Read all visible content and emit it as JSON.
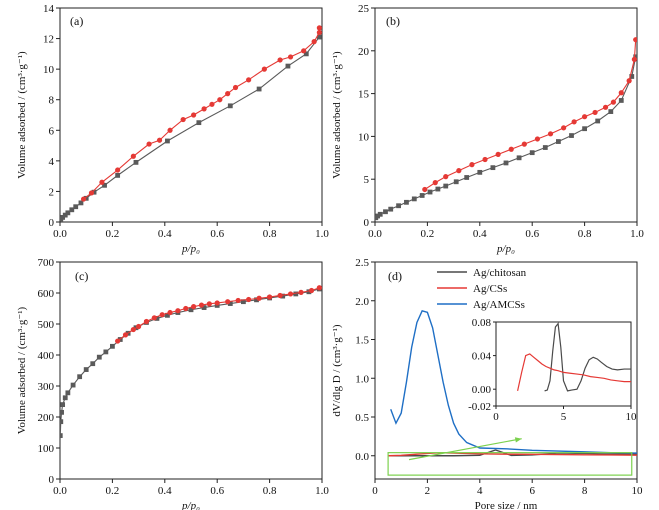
{
  "chart_data": [
    {
      "panel": "(a)",
      "type": "line",
      "xlabel": "p/p₀",
      "ylabel": "Volume adsorbed / (cm³·g⁻¹)",
      "xlim": [
        0,
        1.0
      ],
      "ylim": [
        0,
        14
      ],
      "xticks": [
        "0.0",
        "0.2",
        "0.4",
        "0.6",
        "0.8",
        "1.0"
      ],
      "yticks": [
        "0",
        "2",
        "4",
        "6",
        "8",
        "10",
        "12",
        "14"
      ],
      "series": [
        {
          "color": "#5a5a5a",
          "marker": "square",
          "x": [
            0.003,
            0.01,
            0.02,
            0.03,
            0.045,
            0.06,
            0.08,
            0.1,
            0.13,
            0.17,
            0.22,
            0.29,
            0.41,
            0.53,
            0.65,
            0.76,
            0.87,
            0.94,
            0.99
          ],
          "y": [
            0.2,
            0.3,
            0.45,
            0.6,
            0.8,
            1.0,
            1.25,
            1.55,
            1.95,
            2.4,
            3.05,
            3.9,
            5.3,
            6.5,
            7.6,
            8.7,
            10.2,
            11.0,
            12.1
          ]
        },
        {
          "color": "#e53935",
          "marker": "circle",
          "x": [
            0.09,
            0.12,
            0.16,
            0.22,
            0.28,
            0.34,
            0.38,
            0.42,
            0.47,
            0.51,
            0.55,
            0.58,
            0.61,
            0.64,
            0.67,
            0.72,
            0.78,
            0.84,
            0.88,
            0.93,
            0.97,
            0.99,
            0.99
          ],
          "y": [
            1.5,
            1.9,
            2.6,
            3.4,
            4.3,
            5.1,
            5.35,
            6.0,
            6.7,
            7.0,
            7.4,
            7.7,
            8.0,
            8.4,
            8.8,
            9.3,
            10.0,
            10.6,
            10.8,
            11.2,
            11.8,
            12.4,
            12.7
          ]
        }
      ]
    },
    {
      "panel": "(b)",
      "type": "line",
      "xlabel": "p/p₀",
      "ylabel": "Volume adsorbed / (cm³·g⁻¹)",
      "xlim": [
        0,
        1.0
      ],
      "ylim": [
        0,
        25
      ],
      "xticks": [
        "0.0",
        "0.2",
        "0.4",
        "0.6",
        "0.8",
        "1.0"
      ],
      "yticks": [
        "0",
        "5",
        "10",
        "15",
        "20",
        "25"
      ],
      "series": [
        {
          "color": "#5a5a5a",
          "marker": "square",
          "x": [
            0.003,
            0.01,
            0.02,
            0.04,
            0.06,
            0.09,
            0.12,
            0.15,
            0.18,
            0.21,
            0.24,
            0.27,
            0.31,
            0.35,
            0.4,
            0.45,
            0.5,
            0.55,
            0.6,
            0.65,
            0.7,
            0.75,
            0.8,
            0.85,
            0.9,
            0.94,
            0.98,
            0.995
          ],
          "y": [
            0.5,
            0.7,
            0.9,
            1.2,
            1.5,
            1.9,
            2.3,
            2.7,
            3.1,
            3.5,
            3.85,
            4.2,
            4.7,
            5.2,
            5.8,
            6.35,
            6.9,
            7.5,
            8.1,
            8.7,
            9.4,
            10.1,
            10.9,
            11.8,
            12.9,
            14.2,
            17.0,
            19.3
          ]
        },
        {
          "color": "#e53935",
          "marker": "circle",
          "x": [
            0.19,
            0.23,
            0.27,
            0.32,
            0.37,
            0.42,
            0.47,
            0.52,
            0.57,
            0.62,
            0.67,
            0.72,
            0.76,
            0.8,
            0.84,
            0.88,
            0.91,
            0.94,
            0.97,
            0.99,
            0.995
          ],
          "y": [
            3.8,
            4.6,
            5.3,
            6.0,
            6.7,
            7.3,
            7.9,
            8.5,
            9.1,
            9.7,
            10.3,
            11.0,
            11.7,
            12.3,
            12.8,
            13.4,
            14.0,
            15.1,
            16.5,
            19.0,
            21.3
          ]
        }
      ]
    },
    {
      "panel": "(c)",
      "type": "line",
      "xlabel": "p/p₀",
      "ylabel": "Volume adsorbed / (cm³·g⁻¹)",
      "xlim": [
        0,
        1.0
      ],
      "ylim": [
        0,
        700
      ],
      "xticks": [
        "0.0",
        "0.2",
        "0.4",
        "0.6",
        "0.8",
        "1.0"
      ],
      "yticks": [
        "0",
        "100",
        "200",
        "300",
        "400",
        "500",
        "600",
        "700"
      ],
      "series": [
        {
          "color": "#5a5a5a",
          "marker": "square",
          "x": [
            0.001,
            0.003,
            0.006,
            0.01,
            0.02,
            0.03,
            0.05,
            0.075,
            0.1,
            0.125,
            0.15,
            0.175,
            0.2,
            0.23,
            0.26,
            0.29,
            0.33,
            0.37,
            0.41,
            0.45,
            0.5,
            0.55,
            0.6,
            0.65,
            0.7,
            0.75,
            0.8,
            0.85,
            0.9,
            0.95,
            0.99
          ],
          "y": [
            140,
            185,
            215,
            240,
            262,
            278,
            303,
            330,
            353,
            372,
            393,
            410,
            428,
            450,
            470,
            488,
            505,
            518,
            528,
            537,
            546,
            553,
            560,
            566,
            572,
            578,
            584,
            590,
            597,
            604,
            613
          ]
        },
        {
          "color": "#e53935",
          "marker": "circle",
          "x": [
            0.22,
            0.25,
            0.28,
            0.3,
            0.33,
            0.36,
            0.39,
            0.42,
            0.45,
            0.48,
            0.51,
            0.54,
            0.57,
            0.6,
            0.64,
            0.68,
            0.72,
            0.76,
            0.8,
            0.84,
            0.88,
            0.92,
            0.96,
            0.99
          ],
          "y": [
            445,
            465,
            482,
            492,
            508,
            520,
            530,
            537,
            543,
            550,
            556,
            561,
            565,
            568,
            572,
            576,
            579,
            583,
            587,
            592,
            597,
            602,
            608,
            617
          ]
        }
      ]
    },
    {
      "panel": "(d)",
      "type": "line",
      "xlabel": "Pore size / nm",
      "ylabel": "dV/dlg D / (cm³·g⁻¹)",
      "xlim": [
        0,
        10
      ],
      "ylim": [
        -0.3,
        2.5
      ],
      "xticks": [
        "0",
        "2",
        "4",
        "6",
        "8",
        "10"
      ],
      "yticks": [
        "0.0",
        "0.5",
        "1.0",
        "1.5",
        "2.0",
        "2.5"
      ],
      "legend": [
        "Ag/chitosan",
        "Ag/CSs",
        "Ag/AMCSs"
      ],
      "series": [
        {
          "name": "Ag/chitosan",
          "color": "#4a4a4a",
          "x": [
            0.5,
            1,
            2,
            3,
            4,
            4.3,
            4.6,
            4.9,
            5.2,
            6,
            7,
            8,
            9,
            10
          ],
          "y": [
            0.0,
            0.0,
            0.0,
            0.0,
            0.005,
            0.04,
            0.075,
            0.04,
            0.005,
            0.01,
            0.035,
            0.03,
            0.02,
            0.022
          ]
        },
        {
          "name": "Ag/CSs",
          "color": "#e53935",
          "x": [
            0.5,
            1,
            2,
            2.5,
            3,
            4,
            5,
            6,
            7,
            8,
            9,
            10
          ],
          "y": [
            0.0,
            0.005,
            0.03,
            0.04,
            0.035,
            0.025,
            0.02,
            0.018,
            0.015,
            0.012,
            0.01,
            0.008
          ]
        },
        {
          "name": "Ag/AMCSs",
          "color": "#1f6fc5",
          "x": [
            0.6,
            0.8,
            1.0,
            1.2,
            1.4,
            1.6,
            1.8,
            2.0,
            2.2,
            2.4,
            2.6,
            2.8,
            3.0,
            3.2,
            3.5,
            4.0,
            5.0,
            6.0,
            7.0,
            8.0,
            9.0,
            10.0
          ],
          "y": [
            0.6,
            0.42,
            0.55,
            0.95,
            1.4,
            1.72,
            1.87,
            1.85,
            1.65,
            1.3,
            0.95,
            0.65,
            0.42,
            0.28,
            0.17,
            0.1,
            0.09,
            0.07,
            0.06,
            0.05,
            0.04,
            0.035
          ]
        }
      ],
      "inset": {
        "xlim": [
          0,
          10
        ],
        "ylim": [
          -0.02,
          0.08
        ],
        "xticks": [
          "0",
          "5",
          "10"
        ],
        "yticks": [
          "-0.02",
          "0.00",
          "0.04",
          "0.08"
        ],
        "series": [
          {
            "color": "#4a4a4a",
            "x": [
              3.6,
              3.8,
              4.0,
              4.2,
              4.4,
              4.6,
              4.8,
              5.0,
              5.3,
              5.6,
              6.0,
              6.3,
              6.6,
              6.9,
              7.2,
              7.5,
              7.8,
              8.2,
              8.6,
              9.0,
              9.5,
              10.0
            ],
            "y": [
              -0.002,
              -0.001,
              0.01,
              0.045,
              0.074,
              0.078,
              0.05,
              0.01,
              -0.002,
              -0.001,
              0.0,
              0.01,
              0.025,
              0.035,
              0.038,
              0.036,
              0.032,
              0.027,
              0.024,
              0.023,
              0.024,
              0.024
            ]
          },
          {
            "color": "#e53935",
            "x": [
              1.6,
              1.9,
              2.2,
              2.5,
              2.8,
              3.1,
              3.4,
              3.7,
              4.0,
              4.3,
              4.6,
              5.0,
              5.5,
              6.0,
              6.5,
              7.0,
              7.5,
              8.0,
              8.5,
              9.0,
              9.5,
              10.0
            ],
            "y": [
              -0.002,
              0.02,
              0.04,
              0.042,
              0.038,
              0.034,
              0.03,
              0.027,
              0.025,
              0.023,
              0.022,
              0.02,
              0.019,
              0.018,
              0.017,
              0.015,
              0.014,
              0.013,
              0.011,
              0.01,
              0.009,
              0.009
            ]
          }
        ]
      }
    }
  ]
}
